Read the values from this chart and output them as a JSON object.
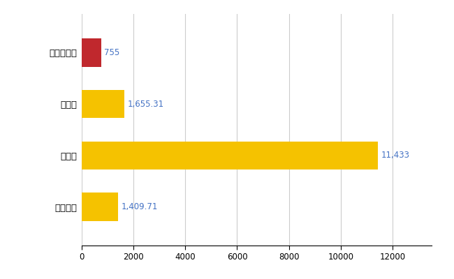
{
  "categories": [
    "伊豆の国市",
    "県平均",
    "県最大",
    "全国平均"
  ],
  "values": [
    755,
    1655.31,
    11433,
    1409.71
  ],
  "bar_colors": [
    "#c0282d",
    "#f5c200",
    "#f5c200",
    "#f5c200"
  ],
  "labels": [
    "755",
    "1,655.31",
    "11,433",
    "1,409.71"
  ],
  "label_color": "#4472c4",
  "xlim": [
    0,
    13500
  ],
  "xticks": [
    0,
    2000,
    4000,
    6000,
    8000,
    10000,
    12000
  ],
  "grid_color": "#cccccc",
  "bg_color": "#ffffff",
  "bar_height": 0.55,
  "figsize": [
    6.5,
    4.0
  ],
  "dpi": 100
}
